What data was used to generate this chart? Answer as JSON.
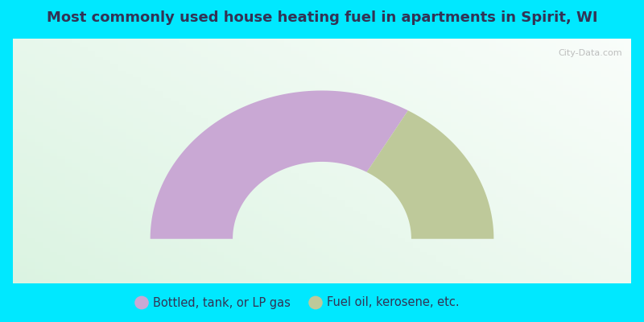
{
  "title": "Most commonly used house heating fuel in apartments in Spirit, WI",
  "title_fontsize": 13,
  "cyan_color": "#00e8ff",
  "segments": [
    {
      "label": "Bottled, tank, or LP gas",
      "value": 66.7,
      "color": "#c9a8d4"
    },
    {
      "label": "Fuel oil, kerosene, etc.",
      "value": 33.3,
      "color": "#bec99a"
    }
  ],
  "legend_fontsize": 10.5,
  "watermark": "City-Data.com",
  "outer_r": 1.0,
  "inner_r": 0.52,
  "gradient_colors": [
    "#c5e8c5",
    "#e8f5e8",
    "#f0faf5",
    "#ffffff",
    "#f5f0f8"
  ],
  "title_color": "#333355"
}
